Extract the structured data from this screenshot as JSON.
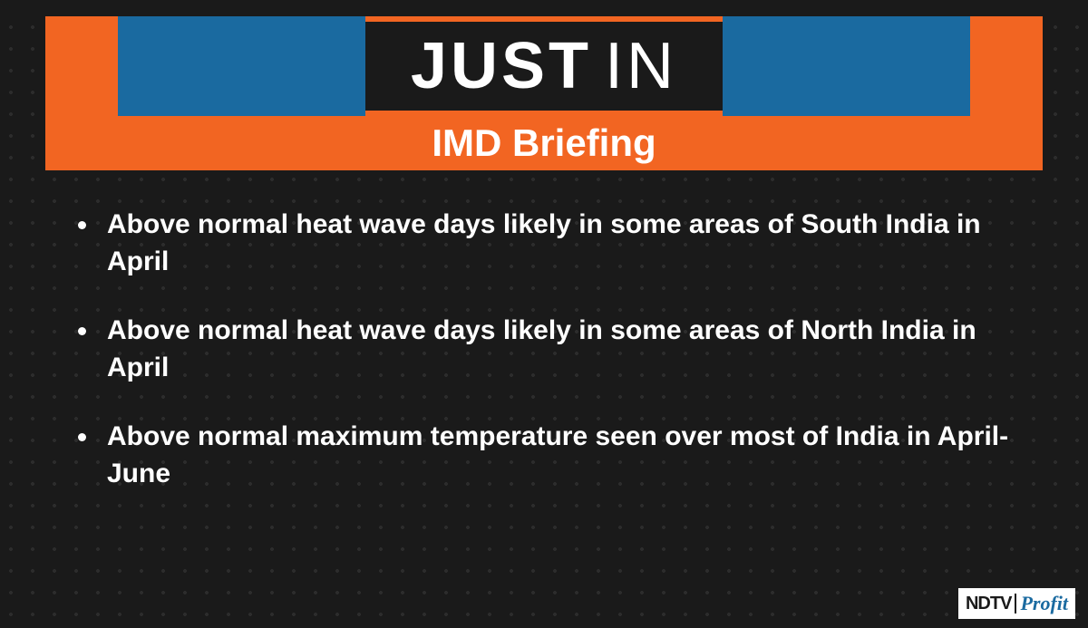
{
  "colors": {
    "background": "#1a1a1a",
    "orange": "#f26522",
    "blue": "#1a6aa0",
    "headline_border": "#f26522",
    "text": "#ffffff",
    "logo_bg": "#ffffff",
    "logo_profit": "#1a6aa0"
  },
  "headline": {
    "word1": "JUST",
    "word2": "IN"
  },
  "subheader": "IMD Briefing",
  "bullets": [
    "Above normal heat wave days likely in some areas of South India in April",
    "Above normal heat wave days likely in some areas of North India in April",
    "Above normal maximum temperature seen over most of India in April-June"
  ],
  "logo": {
    "brand": "NDTV",
    "sub": "Profit"
  }
}
